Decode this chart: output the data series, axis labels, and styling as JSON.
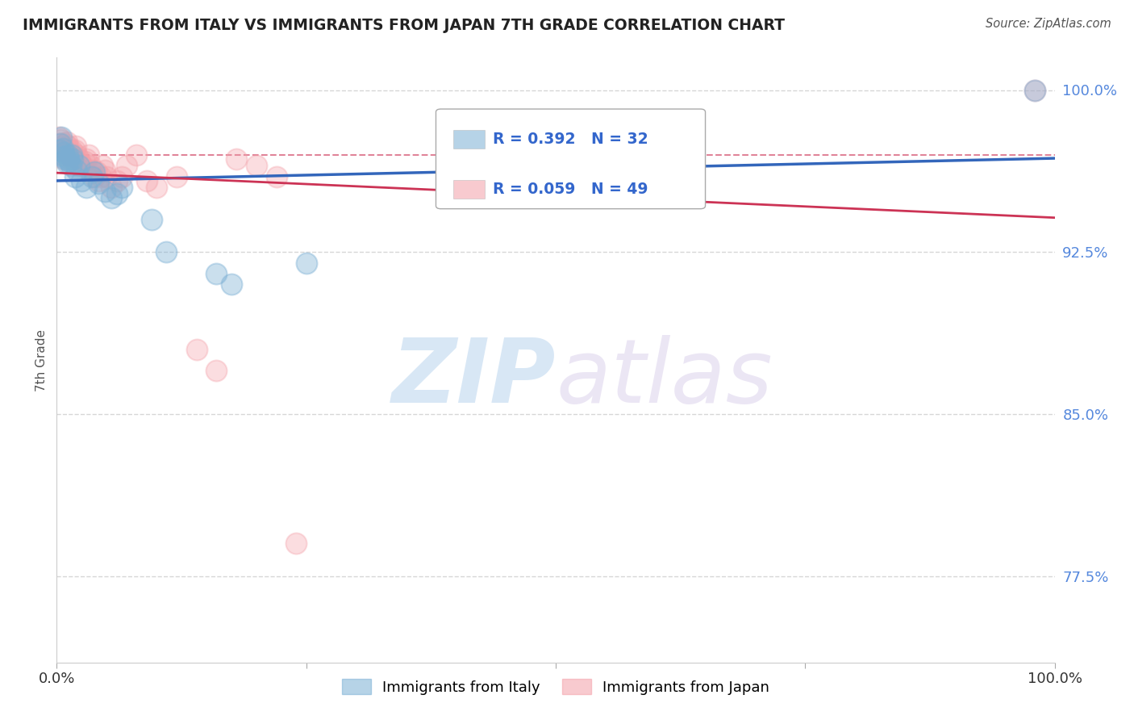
{
  "title": "IMMIGRANTS FROM ITALY VS IMMIGRANTS FROM JAPAN 7TH GRADE CORRELATION CHART",
  "source": "Source: ZipAtlas.com",
  "ylabel": "7th Grade",
  "xlim": [
    0.0,
    1.0
  ],
  "ylim": [
    0.735,
    1.015
  ],
  "xticklabels_pos": [
    0.0,
    1.0
  ],
  "xticklabels": [
    "0.0%",
    "100.0%"
  ],
  "ytick_positions": [
    0.775,
    0.85,
    0.925,
    1.0
  ],
  "ytick_labels": [
    "77.5%",
    "85.0%",
    "92.5%",
    "100.0%"
  ],
  "italy_color": "#7BAFD4",
  "japan_color": "#F4A0A8",
  "italy_R": 0.392,
  "italy_N": 32,
  "japan_R": 0.059,
  "japan_N": 49,
  "italy_x": [
    0.003,
    0.004,
    0.005,
    0.006,
    0.007,
    0.008,
    0.009,
    0.01,
    0.011,
    0.012,
    0.013,
    0.014,
    0.015,
    0.016,
    0.018,
    0.02,
    0.022,
    0.025,
    0.03,
    0.035,
    0.038,
    0.042,
    0.048,
    0.055,
    0.06,
    0.065,
    0.095,
    0.11,
    0.16,
    0.175,
    0.25,
    0.98
  ],
  "italy_y": [
    0.972,
    0.975,
    0.978,
    0.973,
    0.971,
    0.969,
    0.968,
    0.966,
    0.97,
    0.968,
    0.967,
    0.965,
    0.97,
    0.968,
    0.96,
    0.963,
    0.965,
    0.958,
    0.955,
    0.96,
    0.962,
    0.957,
    0.953,
    0.95,
    0.952,
    0.955,
    0.94,
    0.925,
    0.915,
    0.91,
    0.92,
    1.0
  ],
  "japan_x": [
    0.002,
    0.003,
    0.004,
    0.005,
    0.006,
    0.007,
    0.008,
    0.009,
    0.01,
    0.011,
    0.012,
    0.013,
    0.014,
    0.015,
    0.016,
    0.017,
    0.018,
    0.019,
    0.02,
    0.022,
    0.024,
    0.026,
    0.028,
    0.03,
    0.032,
    0.034,
    0.036,
    0.038,
    0.04,
    0.042,
    0.044,
    0.046,
    0.048,
    0.05,
    0.055,
    0.06,
    0.065,
    0.07,
    0.08,
    0.09,
    0.1,
    0.12,
    0.14,
    0.16,
    0.18,
    0.2,
    0.22,
    0.24,
    0.98
  ],
  "japan_y": [
    0.978,
    0.975,
    0.977,
    0.972,
    0.97,
    0.968,
    0.973,
    0.975,
    0.976,
    0.974,
    0.972,
    0.97,
    0.968,
    0.972,
    0.97,
    0.968,
    0.972,
    0.974,
    0.97,
    0.968,
    0.966,
    0.965,
    0.967,
    0.968,
    0.97,
    0.965,
    0.963,
    0.96,
    0.962,
    0.958,
    0.96,
    0.965,
    0.963,
    0.96,
    0.955,
    0.958,
    0.96,
    0.965,
    0.97,
    0.958,
    0.955,
    0.96,
    0.88,
    0.87,
    0.968,
    0.965,
    0.96,
    0.79,
    1.0
  ],
  "background_color": "#ffffff",
  "watermark_zip": "ZIP",
  "watermark_atlas": "atlas",
  "grid_color": "#cccccc",
  "ref_line_y": 0.97,
  "italy_line_start_y": 0.935,
  "italy_line_end_y": 1.0,
  "japan_line_start_y": 0.963,
  "japan_line_end_y": 0.967
}
